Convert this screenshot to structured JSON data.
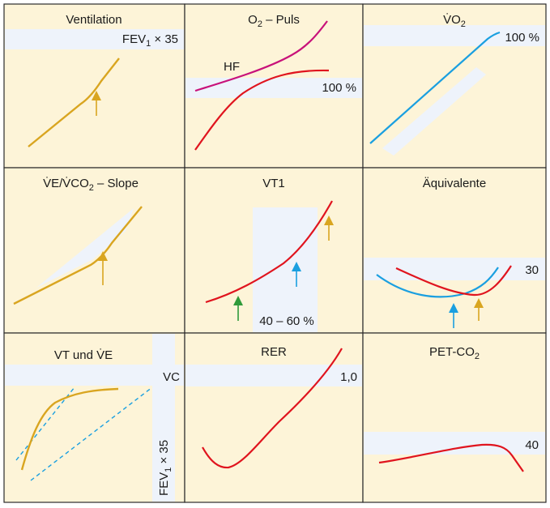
{
  "colors": {
    "panel_bg": "#fdf4d8",
    "band": "#eef3fb",
    "border": "#2b2b2b",
    "yellow": "#d9a520",
    "red": "#e0141e",
    "blue": "#1a9fe0",
    "magenta": "#c8127a",
    "green": "#2f9a3a"
  },
  "panels": {
    "ventilation": {
      "title": "Ventilation",
      "label_a": "FEV",
      "label_sub": "1",
      "label_b": " × 35"
    },
    "o2puls": {
      "title_a": "O",
      "title_sub": "2",
      "title_b": " – Puls",
      "hf": "HF",
      "pct": "100 %"
    },
    "vo2": {
      "title_a": "V̇O",
      "title_sub": "2",
      "pct": "100 %"
    },
    "slope": {
      "title_a": "V̇E/V̇CO",
      "title_sub": "2",
      "title_b": " – Slope"
    },
    "vt1": {
      "title": "VT1",
      "range": "40 – 60 %"
    },
    "aequivalente": {
      "title": "Äquivalente",
      "value": "30"
    },
    "vt_ve": {
      "title": "VT und V̇E",
      "vc": "VC",
      "fev_a": "FEV",
      "fev_sub": "1",
      "fev_b": " × 35"
    },
    "rer": {
      "title": "RER",
      "value": "1,0"
    },
    "petco2": {
      "title_a": "PET-CO",
      "title_sub": "2",
      "value": "40"
    }
  }
}
